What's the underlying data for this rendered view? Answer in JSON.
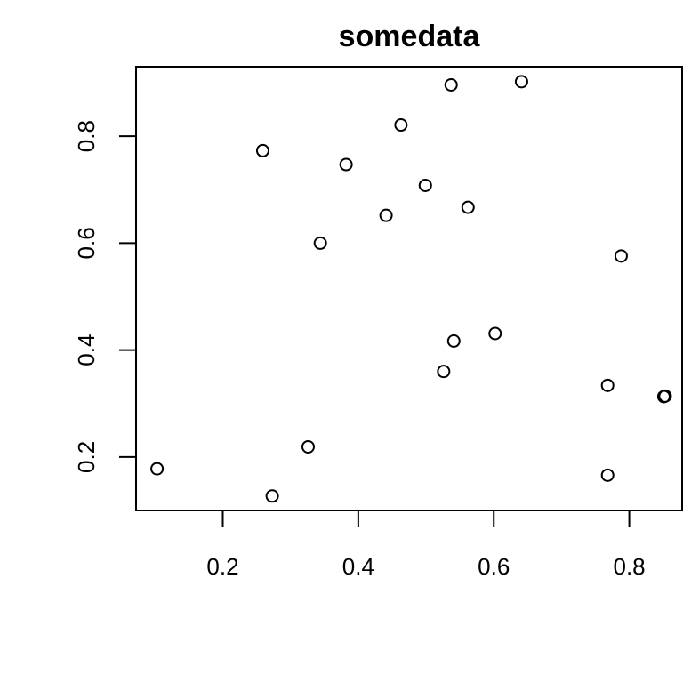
{
  "chart_data": {
    "type": "scatter",
    "title": "somedata",
    "xlabel": "",
    "ylabel": "",
    "xlim": [
      0.072,
      0.878
    ],
    "ylim": [
      0.1,
      0.93
    ],
    "x_ticks": [
      0.2,
      0.4,
      0.6,
      0.8
    ],
    "x_tick_labels": [
      "0.2",
      "0.4",
      "0.6",
      "0.8"
    ],
    "y_ticks": [
      0.2,
      0.4,
      0.6,
      0.8
    ],
    "y_tick_labels": [
      "0.2",
      "0.4",
      "0.6",
      "0.8"
    ],
    "grid": false,
    "marker": "open-circle",
    "points": [
      {
        "x": 0.103,
        "y": 0.178
      },
      {
        "x": 0.259,
        "y": 0.773
      },
      {
        "x": 0.273,
        "y": 0.127
      },
      {
        "x": 0.326,
        "y": 0.219
      },
      {
        "x": 0.344,
        "y": 0.6
      },
      {
        "x": 0.382,
        "y": 0.747
      },
      {
        "x": 0.441,
        "y": 0.652
      },
      {
        "x": 0.463,
        "y": 0.821
      },
      {
        "x": 0.499,
        "y": 0.708
      },
      {
        "x": 0.526,
        "y": 0.36
      },
      {
        "x": 0.537,
        "y": 0.896
      },
      {
        "x": 0.541,
        "y": 0.417
      },
      {
        "x": 0.562,
        "y": 0.667
      },
      {
        "x": 0.602,
        "y": 0.431
      },
      {
        "x": 0.641,
        "y": 0.902
      },
      {
        "x": 0.768,
        "y": 0.334
      },
      {
        "x": 0.768,
        "y": 0.166
      },
      {
        "x": 0.788,
        "y": 0.576
      },
      {
        "x": 0.851,
        "y": 0.313
      },
      {
        "x": 0.853,
        "y": 0.314
      }
    ]
  }
}
